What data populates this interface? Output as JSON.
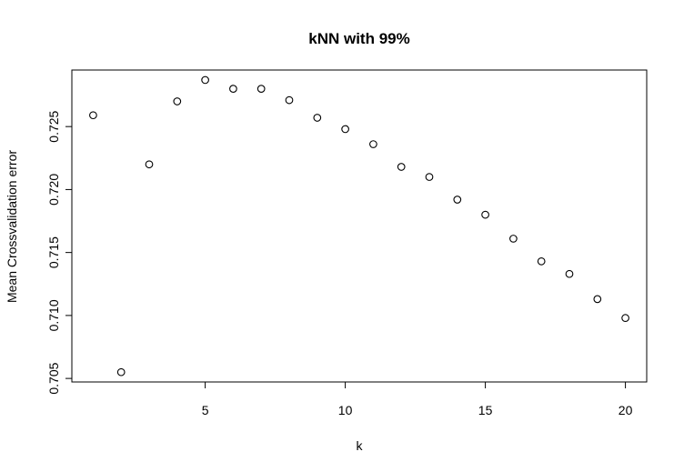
{
  "chart_data": {
    "type": "scatter",
    "title": "kNN with 99%",
    "xlabel": "k",
    "ylabel": "Mean Crossvalidation error",
    "x": [
      1,
      2,
      3,
      4,
      5,
      6,
      7,
      8,
      9,
      10,
      11,
      12,
      13,
      14,
      15,
      16,
      17,
      18,
      19,
      20
    ],
    "y": [
      0.7259,
      0.7055,
      0.722,
      0.727,
      0.7287,
      0.728,
      0.728,
      0.7271,
      0.7257,
      0.7248,
      0.7236,
      0.7218,
      0.721,
      0.7192,
      0.718,
      0.7161,
      0.7143,
      0.7133,
      0.7113,
      0.7098
    ],
    "xlim": [
      0.24,
      20.76
    ],
    "ylim": [
      0.70472,
      0.72949
    ],
    "xticks": [
      5,
      10,
      15,
      20
    ],
    "xtick_labels": [
      "5",
      "10",
      "15",
      "20"
    ],
    "yticks": [
      0.705,
      0.71,
      0.715,
      0.72,
      0.725
    ],
    "ytick_labels": [
      "0.705",
      "0.710",
      "0.715",
      "0.720",
      "0.725"
    ],
    "grid": false,
    "legend": "none",
    "marker": "open-circle",
    "colors": {
      "foreground": "#000000",
      "background": "#ffffff"
    }
  }
}
